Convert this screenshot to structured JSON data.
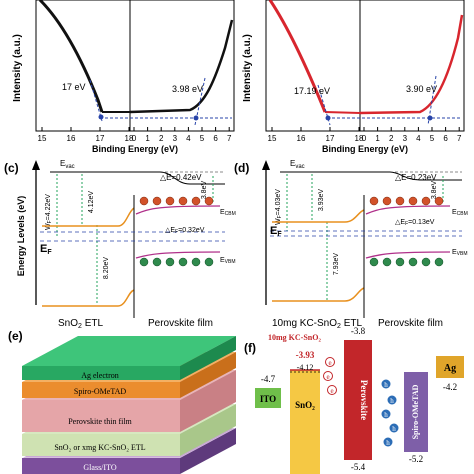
{
  "colors": {
    "black_curve": "#111111",
    "red_curve": "#d8262e",
    "dashed_fit": "#2743a8",
    "orange_band": "#e8901e",
    "magenta_band": "#b0308a",
    "green_arrow": "#23a35b",
    "ito_green": "#6fbf4a",
    "sno2_yellow": "#f5c844",
    "perovskite_red": "#c2262a",
    "spiro_purple": "#7e5fa8",
    "ag_gold": "#e0a52a",
    "electron_blue": "#2c6db6"
  },
  "panel_a": {
    "ylabel": "Intensity (a.u.)",
    "xlabel": "Binding Energy (eV)",
    "left_ticks": [
      "15",
      "16",
      "17",
      "18"
    ],
    "right_ticks": [
      "0",
      "1",
      "2",
      "3",
      "4",
      "5",
      "6",
      "7"
    ],
    "left_annotation": "17 eV",
    "right_annotation": "3.98 eV"
  },
  "panel_b": {
    "ylabel": "Intensity (a.u.)",
    "xlabel": "Binding Energy (eV)",
    "left_ticks": [
      "15",
      "16",
      "17",
      "18"
    ],
    "right_ticks": [
      "0",
      "1",
      "2",
      "3",
      "4",
      "5",
      "6",
      "7"
    ],
    "left_annotation": "17.19 eV",
    "right_annotation": "3.90 eV"
  },
  "panel_c": {
    "label": "(c)",
    "ylabel": "Energy Levels (eV)",
    "evac": "E",
    "evac_sub": "vac",
    "delta_evac": "△E=0.42eV",
    "wf": "W",
    "wf_sub": "F",
    "wf_value": "=4.22eV",
    "gap1": "4.12eV",
    "gap2": "8.20eV",
    "delta_ef": "△E",
    "delta_ef_sub": "F",
    "delta_ef_value": "=0.32eV",
    "ecbm_offset": "3.8eV",
    "ef": "E",
    "ef_sub": "F",
    "ecbm": "E",
    "ecbm_sub": "CBM",
    "evbm": "E",
    "evbm_sub": "VBM",
    "left_film": "SnO",
    "left_film_sub": "2",
    "left_film_tail": " ETL",
    "right_film": "Perovskite film"
  },
  "panel_d": {
    "label": "(d)",
    "evac": "E",
    "evac_sub": "vac",
    "delta_evac": "△E=0.23eV",
    "wf": "W",
    "wf_sub": "F",
    "wf_value": "=4.03eV",
    "gap1": "3.93eV",
    "gap2": "7.93eV",
    "delta_ef": "△E",
    "delta_ef_sub": "F",
    "delta_ef_value": "=0.13eV",
    "ecbm_offset": "3.8eV",
    "ef": "E",
    "ef_sub": "F",
    "ecbm": "E",
    "ecbm_sub": "CBM",
    "evbm": "E",
    "evbm_sub": "VBM",
    "left_film": "10mg KC-SnO",
    "left_film_sub": "2",
    "left_film_tail": " ETL",
    "right_film": "Perovskite film"
  },
  "panel_e": {
    "label": "(e)",
    "layers": [
      "Ag electron",
      "Spiro-OMeTAD",
      "Perovskite thin film",
      "SnO₂ or xmg KC-SnO₂ ETL",
      "Glass/ITO"
    ]
  },
  "panel_f": {
    "label": "(f)",
    "legend": "10mg KC-SnO₂",
    "ito": "ITO",
    "ito_level": "-4.7",
    "sno2": "SnO₂",
    "sno2_kc_level": "-3.93",
    "sno2_top": "-4.12",
    "perovskite": "Perovskite",
    "perov_top": "-3.8",
    "perov_bottom": "-5.4",
    "spiro": "Spiro-OMeTAD",
    "spiro_bottom": "-5.2",
    "ag": "Ag",
    "ag_level": "-4.2",
    "electron_symbol": "e",
    "hole_symbol": "h"
  }
}
